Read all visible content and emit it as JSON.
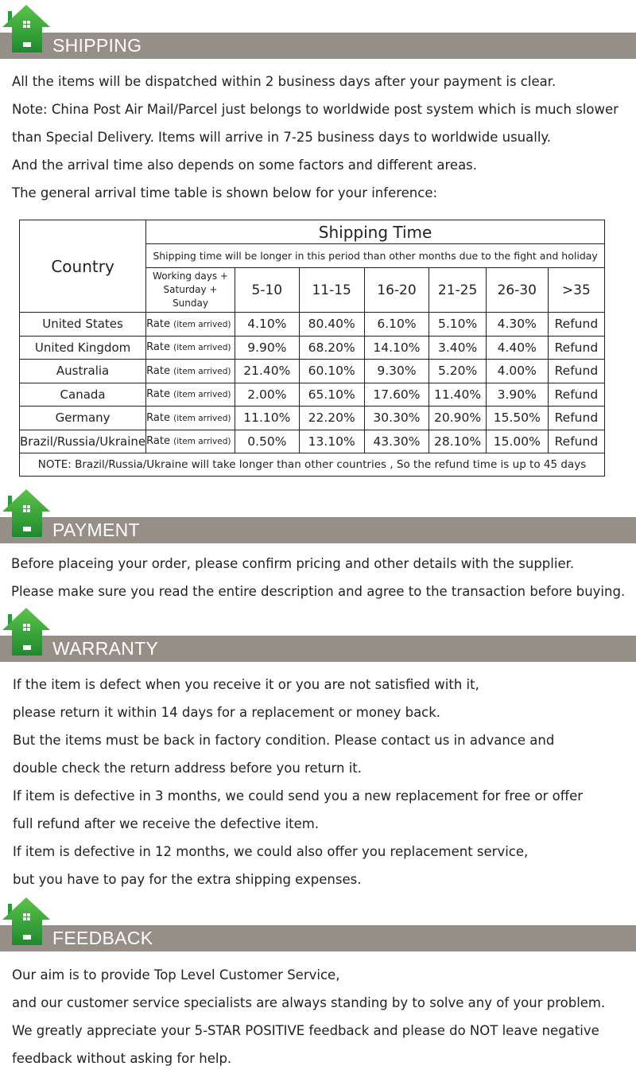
{
  "colors": {
    "header_bar": "#958f88",
    "house_icon": "#2a9a3a"
  },
  "shipping": {
    "title": "SHIPPING",
    "lines": [
      "All the items will be dispatched within 2 business days after your payment is clear.",
      "Note: China Post Air Mail/Parcel just belongs to worldwide post system which is much slower",
      "than Special Delivery. Items will arrive in 7-25 business days to worldwide usually.",
      "And the arrival time also depends on some factors and different areas.",
      "The general arrival time table is shown below for your inference:"
    ],
    "table": {
      "country_header": "Country",
      "shipping_time_header": "Shipping Time",
      "period_note": "Shipping time will be longer in this period than other months due to the fight and holiday",
      "days_label": "Working days + Saturday + Sunday",
      "columns": [
        "5-10",
        "11-15",
        "16-20",
        "21-25",
        "26-30",
        ">35"
      ],
      "rate_label": "Rate",
      "rate_sub": "(item arrived)",
      "rows": [
        {
          "country": "United States",
          "values": [
            "4.10%",
            "80.40%",
            "6.10%",
            "5.10%",
            "4.30%",
            "Refund"
          ]
        },
        {
          "country": "United Kingdom",
          "values": [
            "9.90%",
            "68.20%",
            "14.10%",
            "3.40%",
            "4.40%",
            "Refund"
          ]
        },
        {
          "country": "Australia",
          "values": [
            "21.40%",
            "60.10%",
            "9.30%",
            "5.20%",
            "4.00%",
            "Refund"
          ]
        },
        {
          "country": "Canada",
          "values": [
            "2.00%",
            "65.10%",
            "17.60%",
            "11.40%",
            "3.90%",
            "Refund"
          ]
        },
        {
          "country": "Germany",
          "values": [
            "11.10%",
            "22.20%",
            "30.30%",
            "20.90%",
            "15.50%",
            "Refund"
          ]
        },
        {
          "country": "Brazil/Russia/Ukraine",
          "values": [
            "0.50%",
            "13.10%",
            "43.30%",
            "28.10%",
            "15.00%",
            "Refund"
          ]
        }
      ],
      "note": "NOTE: Brazil/Russia/Ukraine will take longer than other countries , So the refund time is up to 45 days"
    }
  },
  "payment": {
    "title": "PAYMENT",
    "lines": [
      "Before placeing your order, please confirm pricing and other details with the supplier.",
      "Please make sure you read the entire description and agree to the transaction before buying."
    ]
  },
  "warranty": {
    "title": "WARRANTY",
    "lines": [
      "If the item is defect when you receive it or you are not satisfied with it,",
      "please return it within 14 days for a replacement or money back.",
      "But the items must be back in factory condition. Please contact us in advance and",
      "double check the return address before you return it.",
      "If item is defective in 3 months, we could send you a new replacement for free or offer",
      "full refund after we receive the defective item.",
      "If item is defective in 12 months, we could also offer you replacement service,",
      "but you have to pay for the extra shipping expenses."
    ]
  },
  "feedback": {
    "title": "FEEDBACK",
    "lines": [
      "Our aim is to provide Top Level Customer Service,",
      "and our customer service specialists are always standing by to solve any of your problem.",
      "We greatly appreciate your 5-STAR POSITIVE feedback and please do NOT leave negative",
      "feedback without asking for help."
    ]
  }
}
